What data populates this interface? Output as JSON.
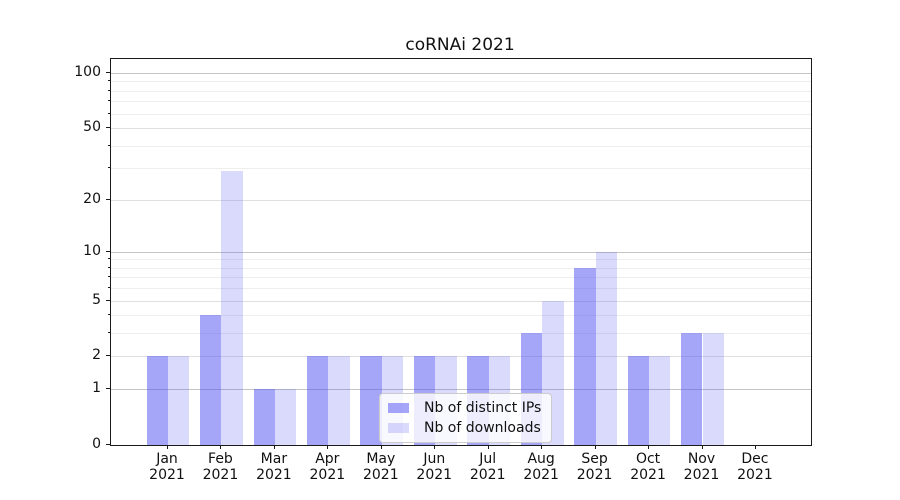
{
  "chart_data": {
    "type": "bar",
    "title": "coRNAi 2021",
    "categories": [
      "Jan",
      "Feb",
      "Mar",
      "Apr",
      "May",
      "Jun",
      "Jul",
      "Aug",
      "Sep",
      "Oct",
      "Nov",
      "Dec"
    ],
    "x_year_label": "2021",
    "series": [
      {
        "name": "Nb of distinct IPs",
        "values": [
          2,
          4,
          1,
          2,
          2,
          2,
          2,
          3,
          8,
          2,
          3,
          0
        ],
        "color": "rgba(85,85,243,0.52)"
      },
      {
        "name": "Nb of downloads",
        "values": [
          2,
          29,
          1,
          2,
          2,
          2,
          2,
          5,
          10,
          2,
          3,
          0
        ],
        "color": "rgba(85,85,243,0.22)"
      }
    ],
    "yscale": "log1p",
    "ylim": [
      0,
      119
    ],
    "yticks": [
      0,
      1,
      2,
      5,
      10,
      20,
      50,
      100
    ],
    "yticks_minor": [
      3,
      4,
      6,
      7,
      8,
      9,
      30,
      40,
      60,
      70,
      80,
      90
    ],
    "grid": true,
    "legend": {
      "position": "inside-bottom-center"
    },
    "colors": {
      "grid_power": "#c5c5c5",
      "grid_labeled": "#e0e0e0",
      "grid_minor": "#eeeeee",
      "axis": "#1a1a1a",
      "text": "#111111",
      "legend_border": "#cccccc",
      "legend_bg": "rgba(255,255,255,0.8)"
    }
  }
}
